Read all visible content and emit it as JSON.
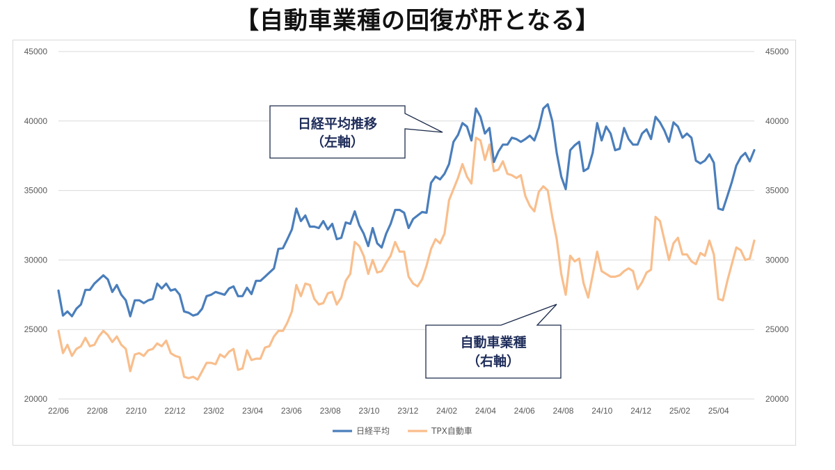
{
  "page": {
    "title": "【自動車業種の回復が肝となる】"
  },
  "chart_data": {
    "type": "line",
    "ylim_left": [
      20000,
      45000
    ],
    "ylim_right": [
      20000,
      45000
    ],
    "y_ticks": [
      "20000",
      "25000",
      "30000",
      "35000",
      "40000",
      "45000"
    ],
    "x_tick_labels": [
      "22/06",
      "22/08",
      "22/10",
      "22/12",
      "23/02",
      "23/04",
      "23/06",
      "23/08",
      "23/10",
      "23/12",
      "24/02",
      "24/04",
      "24/06",
      "24/08",
      "24/10",
      "24/12",
      "25/02",
      "25/04"
    ],
    "grid": "horizontal",
    "legend_position": "bottom",
    "series": [
      {
        "name": "日経平均",
        "axis": "left",
        "color": "#4a7ebb",
        "values": [
          27800,
          26000,
          26300,
          25950,
          26500,
          26800,
          27850,
          27850,
          28300,
          28600,
          28900,
          28600,
          27700,
          28200,
          27500,
          27100,
          25950,
          27100,
          27100,
          26900,
          27100,
          27200,
          28300,
          27950,
          28300,
          27800,
          27900,
          27500,
          26300,
          26200,
          26000,
          26100,
          26500,
          27400,
          27500,
          27700,
          27600,
          27500,
          27950,
          28100,
          27400,
          27400,
          28000,
          27550,
          28500,
          28500,
          28800,
          29100,
          29400,
          30800,
          30850,
          31500,
          32200,
          33700,
          32800,
          33200,
          32400,
          32400,
          32300,
          32800,
          32200,
          32600,
          31500,
          31600,
          32700,
          32600,
          33500,
          32500,
          31900,
          31000,
          32300,
          31200,
          30900,
          31900,
          32600,
          33600,
          33600,
          33400,
          32300,
          32950,
          33200,
          33450,
          33400,
          35550,
          36000,
          35800,
          36200,
          36900,
          38500,
          39000,
          39850,
          39600,
          38600,
          40900,
          40300,
          39100,
          39500,
          37050,
          37800,
          38300,
          38300,
          38800,
          38700,
          38500,
          38700,
          38950,
          38600,
          39500,
          40900,
          41200,
          40000,
          37700,
          36000,
          35100,
          37900,
          38250,
          38500,
          36400,
          36600,
          37700,
          39850,
          38600,
          39600,
          39100,
          37900,
          38000,
          39500,
          38700,
          38300,
          38300,
          39100,
          39400,
          38700,
          40300,
          39900,
          39300,
          38500,
          39900,
          39600,
          38800,
          39100,
          38800,
          37150,
          36950,
          37150,
          37600,
          37000,
          33700,
          33600,
          34600,
          35600,
          36800,
          37400,
          37700,
          37100,
          37900
        ]
      },
      {
        "name": "TPX自動車",
        "axis": "right",
        "color": "#f9be8c",
        "values": [
          24900,
          23300,
          23900,
          23100,
          23600,
          23800,
          24400,
          23800,
          23900,
          24500,
          24900,
          24600,
          24100,
          24500,
          23900,
          23600,
          22000,
          23200,
          23300,
          23100,
          23500,
          23600,
          24000,
          23800,
          24200,
          23300,
          23100,
          23000,
          21600,
          21500,
          21600,
          21400,
          22000,
          22600,
          22600,
          22500,
          23200,
          23000,
          23400,
          23600,
          22100,
          22200,
          23500,
          22800,
          22900,
          22900,
          23700,
          23800,
          24500,
          24900,
          24900,
          25500,
          26300,
          28200,
          27400,
          28300,
          28200,
          27200,
          26800,
          26900,
          27600,
          27700,
          26800,
          27300,
          28500,
          29000,
          31300,
          31000,
          30300,
          29000,
          30000,
          29100,
          29200,
          29800,
          30300,
          31300,
          30600,
          30600,
          28800,
          28300,
          28100,
          28600,
          29600,
          30800,
          31500,
          31200,
          31900,
          34300,
          35100,
          35900,
          36900,
          36000,
          35500,
          38800,
          38600,
          37200,
          38300,
          36400,
          36500,
          37100,
          36200,
          36100,
          35900,
          36100,
          34600,
          33900,
          33500,
          34900,
          35300,
          35000,
          33100,
          31500,
          29000,
          27500,
          30300,
          29900,
          30100,
          28300,
          27300,
          28900,
          30600,
          29200,
          29000,
          28800,
          28800,
          28900,
          29200,
          29400,
          29200,
          27900,
          28400,
          29100,
          29300,
          33100,
          32800,
          31400,
          30000,
          31200,
          31600,
          30400,
          30400,
          29900,
          29700,
          30500,
          30300,
          31400,
          30400,
          27200,
          27100,
          28500,
          29700,
          30900,
          30700,
          30000,
          30100,
          31400
        ]
      }
    ],
    "annotations": [
      {
        "text_line1": "日経平均推移",
        "text_line2": "（左軸）"
      },
      {
        "text_line1": "自動車業種",
        "text_line2": "（右軸）"
      }
    ]
  },
  "legend": [
    {
      "label": "日経平均",
      "color": "#4a7ebb"
    },
    {
      "label": "TPX自動車",
      "color": "#f9be8c"
    }
  ]
}
